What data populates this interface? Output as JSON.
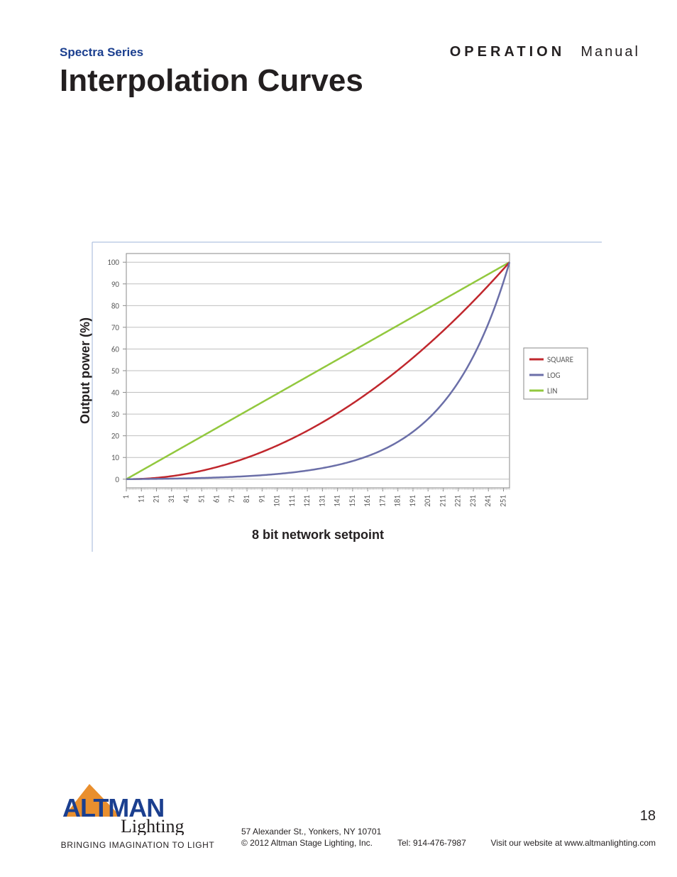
{
  "header": {
    "series": "Spectra Series",
    "operation": "OPERATION",
    "manual": "Manual"
  },
  "title": "Interpolation Curves",
  "chart": {
    "type": "line",
    "y_label": "Output power (%)",
    "x_label": "8 bit network setpoint",
    "plot_bg": "#ffffff",
    "plot_border": "#8a8a8a",
    "grid_color": "#bfbfbf",
    "axis_text_color": "#595959",
    "label_fontsize": 18,
    "tick_fontsize": 11,
    "line_width": 2.5,
    "ylim": [
      -4,
      104
    ],
    "x_count": 255,
    "y_ticks": [
      0,
      10,
      20,
      30,
      40,
      50,
      60,
      70,
      80,
      90,
      100
    ],
    "x_ticks": [
      1,
      11,
      21,
      31,
      41,
      51,
      61,
      71,
      81,
      91,
      101,
      111,
      121,
      131,
      141,
      151,
      161,
      171,
      181,
      191,
      201,
      211,
      221,
      231,
      241,
      251
    ],
    "legend": {
      "bg": "#ffffff",
      "border": "#8a8a8a",
      "items": [
        {
          "label": "SQUARE",
          "color": "#c0272d"
        },
        {
          "label": "LOG",
          "color": "#6b6fa8"
        },
        {
          "label": "LIN",
          "color": "#92c83e"
        }
      ]
    },
    "series": {
      "lin": {
        "color": "#92c83e",
        "start": 0,
        "end": 100,
        "shape": "linear"
      },
      "square": {
        "color": "#c0272d",
        "start": 0,
        "end": 100,
        "shape": "square"
      },
      "log": {
        "color": "#6b6fa8",
        "start": 0,
        "end": 100,
        "shape": "log",
        "k": 6.0
      }
    }
  },
  "footer": {
    "logo": {
      "brand_top": "ALTMAN",
      "brand_bottom": "Lighting",
      "tagline": "BRINGING IMAGINATION TO LIGHT",
      "blue": "#1b3f8f",
      "orange": "#e98f2e",
      "black": "#231f20"
    },
    "address_line1": "57 Alexander St., Yonkers, NY 10701",
    "address_line2": "© 2012 Altman Stage Lighting, Inc.",
    "tel": "Tel: 914-476-7987",
    "site": "Visit our website at www.altmanlighting.com",
    "page": "18"
  }
}
